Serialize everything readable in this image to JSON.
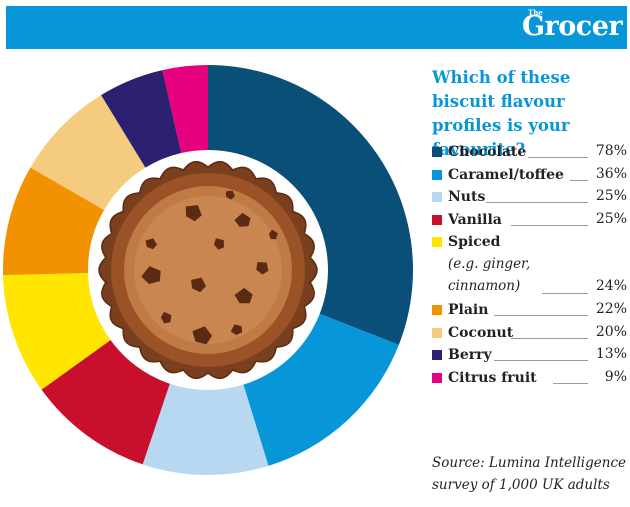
{
  "header": {
    "brand_small": "The",
    "brand": "Grocer"
  },
  "chart_data": {
    "type": "pie",
    "style": "donut",
    "title": "Which of these biscuit flavour profiles is your favourite?",
    "categories": [
      "Chocolate",
      "Caramel/toffee",
      "Nuts",
      "Vanilla",
      "Spiced",
      "Plain",
      "Coconut",
      "Berry",
      "Citrus fruit"
    ],
    "category_notes": [
      "",
      "",
      "",
      "",
      "(e.g. ginger,\ncinnamon)",
      "",
      "",
      "",
      ""
    ],
    "values": [
      78,
      36,
      25,
      25,
      24,
      22,
      20,
      13,
      9
    ],
    "value_labels": [
      "78%",
      "36%",
      "25%",
      "25%",
      "24%",
      "22%",
      "20%",
      "13%",
      "9%"
    ],
    "colors": [
      "#0a4f78",
      "#0797d8",
      "#b8d7f0",
      "#c8102e",
      "#ffe500",
      "#f39200",
      "#f5cc7d",
      "#2b2170",
      "#e5007e"
    ],
    "legend_position": "right",
    "center_image": "cookie"
  },
  "source": "Source: Lumina Intelligence survey of 1,000 UK adults"
}
